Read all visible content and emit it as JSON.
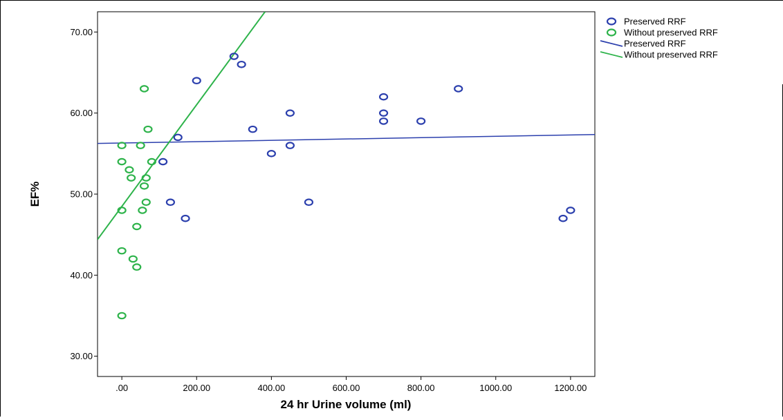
{
  "chart_data": {
    "type": "scatter",
    "title": "",
    "xlabel": "24 hr Urine volume (ml)",
    "ylabel": "EF%",
    "xlim": [
      -65,
      1265
    ],
    "ylim": [
      27.5,
      72.5
    ],
    "x_ticks": [
      ".00",
      "200.00",
      "400.00",
      "600.00",
      "800.00",
      "1000.00",
      "1200.00"
    ],
    "x_tick_values": [
      0,
      200,
      400,
      600,
      800,
      1000,
      1200
    ],
    "y_ticks": [
      "30.00",
      "40.00",
      "50.00",
      "60.00",
      "70.00"
    ],
    "y_tick_values": [
      30,
      40,
      50,
      60,
      70
    ],
    "grid": false,
    "legend_position": "right, outside plot area",
    "legend": [
      {
        "label": "Preserved RRF",
        "kind": "marker",
        "color": "#2b3fad"
      },
      {
        "label": "Without preserved RRF",
        "kind": "marker",
        "color": "#2db34a"
      },
      {
        "label": "Preserved RRF",
        "kind": "line",
        "color": "#2b3fad"
      },
      {
        "label": "Without preserved RRF",
        "kind": "line",
        "color": "#2db34a"
      }
    ],
    "series": [
      {
        "name": "Preserved RRF",
        "color": "#2b3fad",
        "points": [
          {
            "x": 110,
            "y": 54
          },
          {
            "x": 130,
            "y": 49
          },
          {
            "x": 150,
            "y": 57
          },
          {
            "x": 170,
            "y": 47
          },
          {
            "x": 200,
            "y": 64
          },
          {
            "x": 300,
            "y": 67
          },
          {
            "x": 320,
            "y": 66
          },
          {
            "x": 350,
            "y": 58
          },
          {
            "x": 400,
            "y": 55
          },
          {
            "x": 450,
            "y": 60
          },
          {
            "x": 450,
            "y": 56
          },
          {
            "x": 500,
            "y": 49
          },
          {
            "x": 700,
            "y": 62
          },
          {
            "x": 700,
            "y": 60
          },
          {
            "x": 700,
            "y": 59
          },
          {
            "x": 800,
            "y": 59
          },
          {
            "x": 900,
            "y": 63
          },
          {
            "x": 1180,
            "y": 47
          },
          {
            "x": 1200,
            "y": 48
          }
        ],
        "fit_line": [
          {
            "x": -65,
            "y": 56.25
          },
          {
            "x": 1265,
            "y": 57.35
          }
        ]
      },
      {
        "name": "Without preserved RRF",
        "color": "#2db34a",
        "points": [
          {
            "x": 0,
            "y": 56
          },
          {
            "x": 0,
            "y": 54
          },
          {
            "x": 0,
            "y": 48
          },
          {
            "x": 0,
            "y": 43
          },
          {
            "x": 0,
            "y": 35
          },
          {
            "x": 20,
            "y": 53
          },
          {
            "x": 25,
            "y": 52
          },
          {
            "x": 30,
            "y": 42
          },
          {
            "x": 40,
            "y": 46
          },
          {
            "x": 40,
            "y": 41
          },
          {
            "x": 50,
            "y": 56
          },
          {
            "x": 55,
            "y": 48
          },
          {
            "x": 60,
            "y": 63
          },
          {
            "x": 60,
            "y": 51
          },
          {
            "x": 65,
            "y": 52
          },
          {
            "x": 65,
            "y": 49
          },
          {
            "x": 70,
            "y": 58
          },
          {
            "x": 80,
            "y": 54
          }
        ],
        "fit_line": [
          {
            "x": -65,
            "y": 44.4
          },
          {
            "x": 383,
            "y": 72.5
          }
        ]
      }
    ]
  }
}
